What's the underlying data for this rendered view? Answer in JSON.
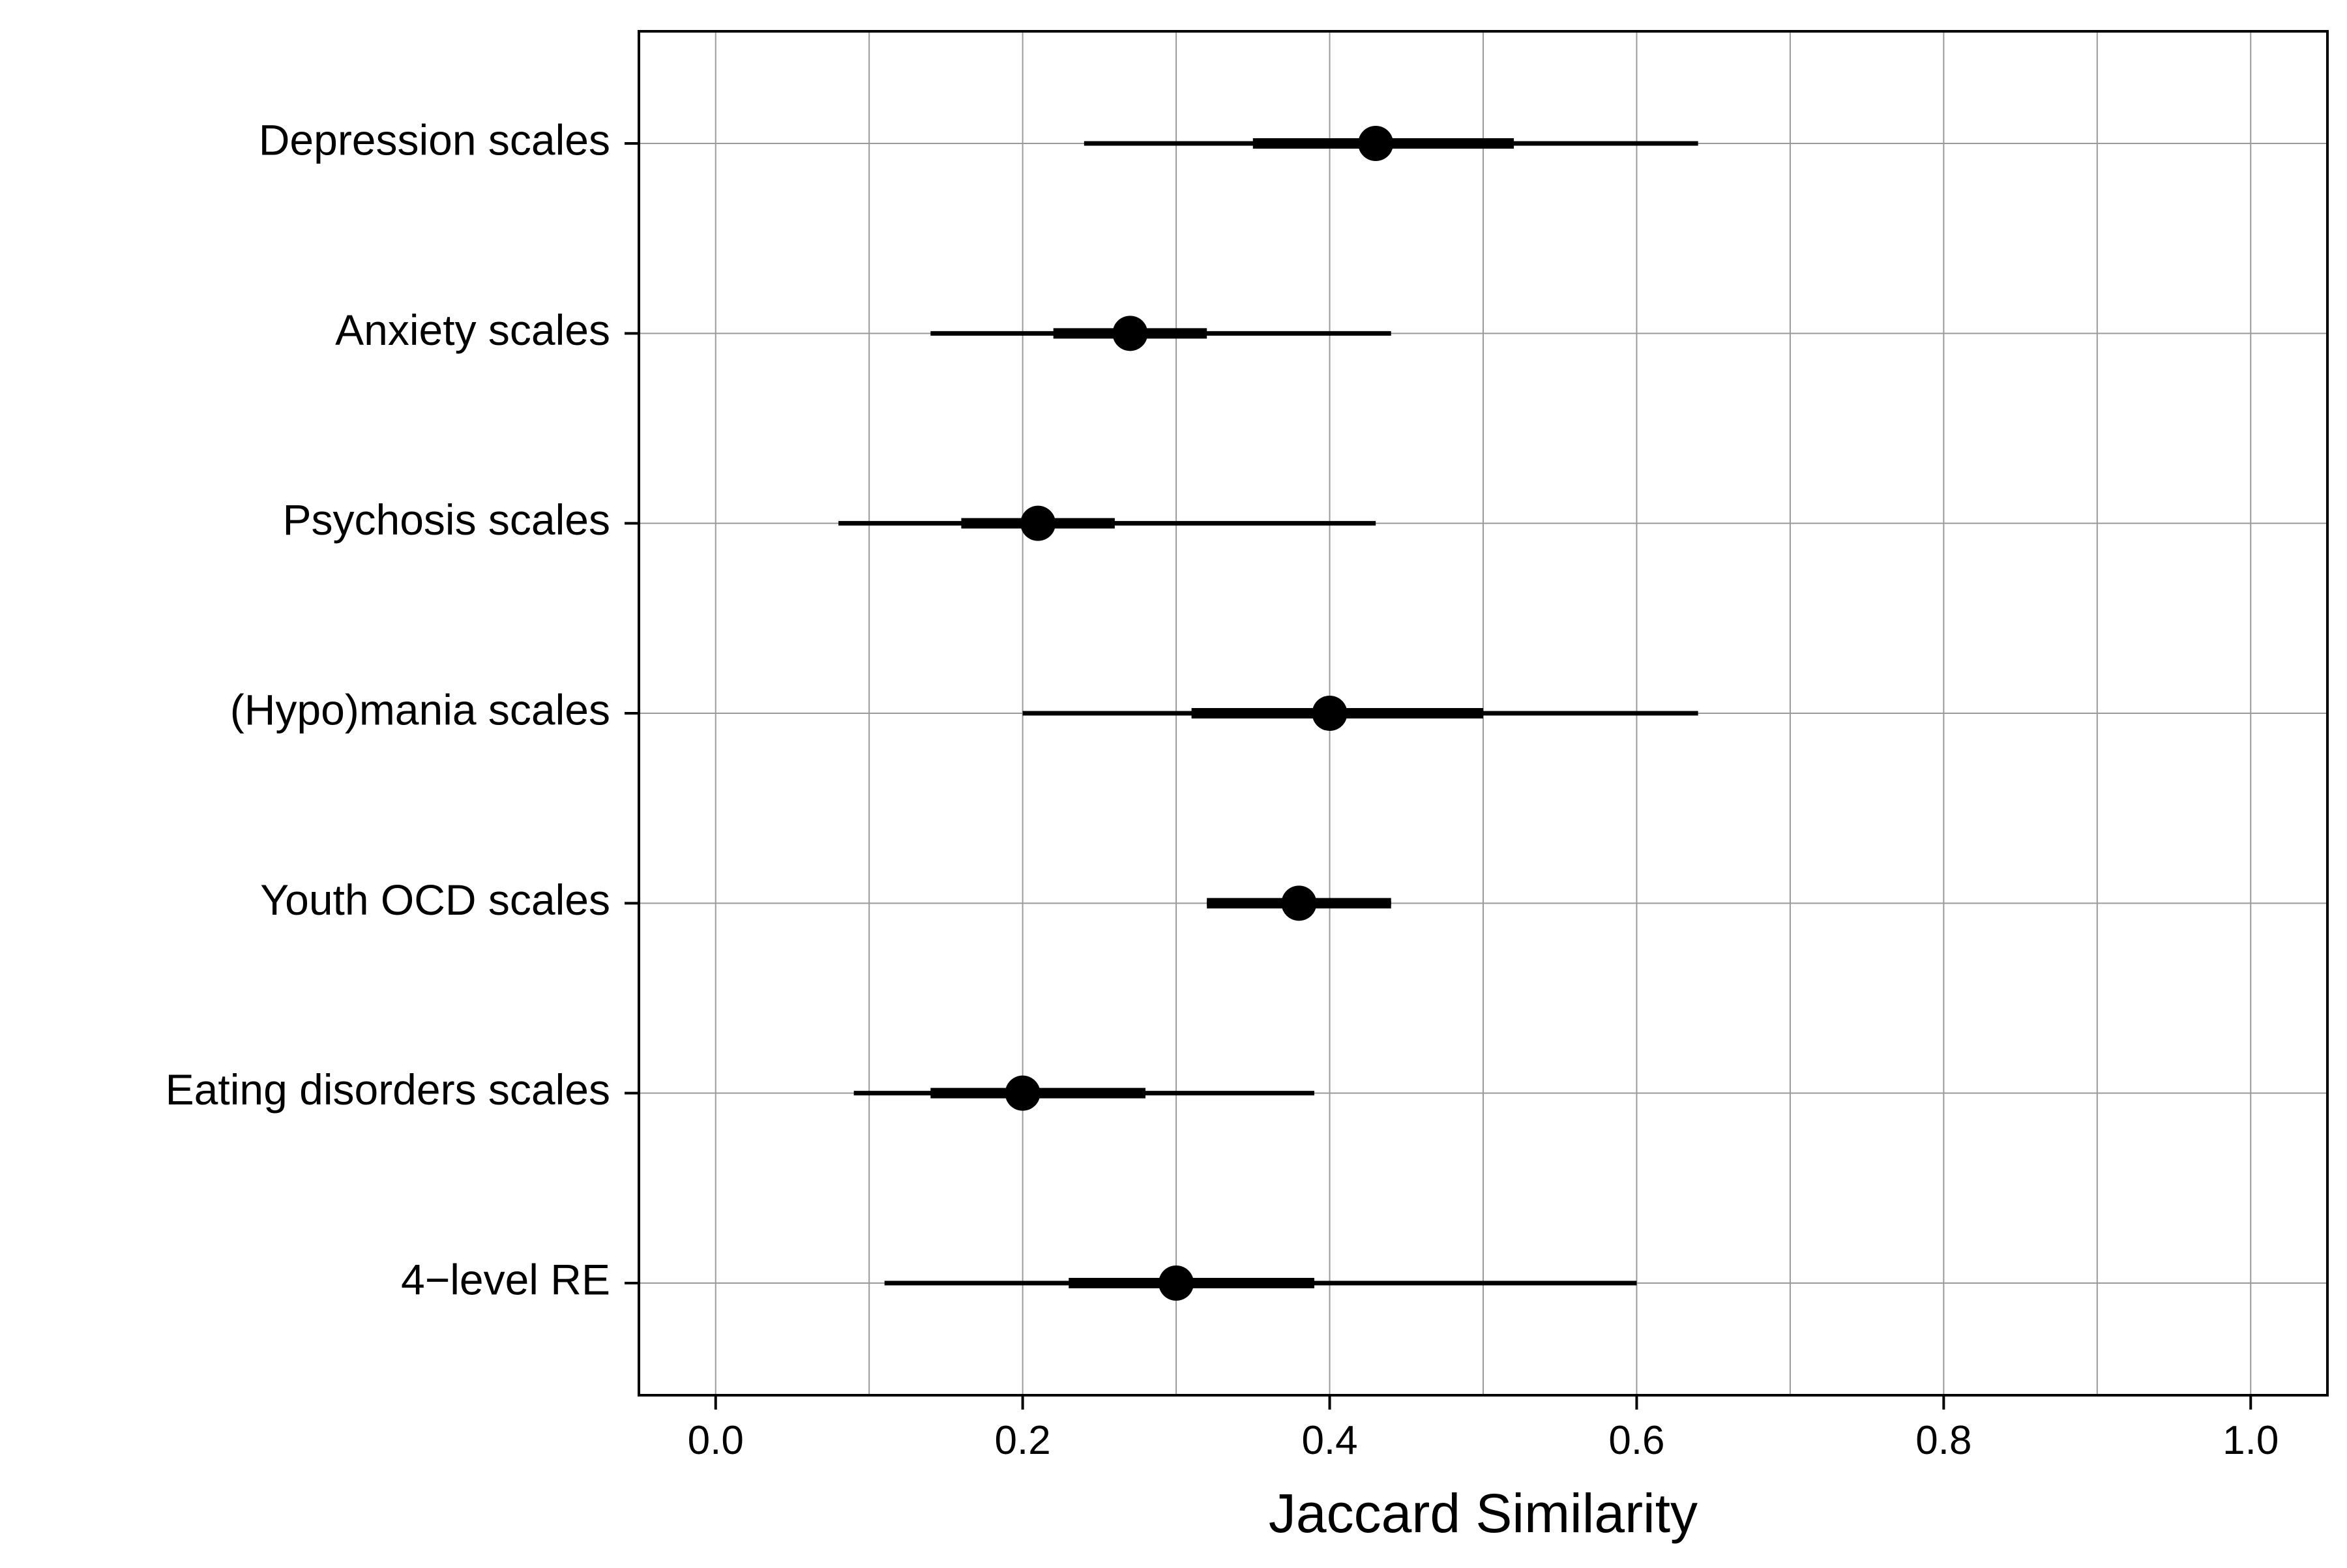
{
  "chart_data": {
    "type": "forest",
    "xlabel": "Jaccard Similarity",
    "xlim": [
      -0.05,
      1.05
    ],
    "x_ticks": [
      0.0,
      0.2,
      0.4,
      0.6,
      0.8,
      1.0
    ],
    "x_tick_labels": [
      "0.0",
      "0.2",
      "0.4",
      "0.6",
      "0.8",
      "1.0"
    ],
    "grid": true,
    "colors": {
      "marks": "#000000",
      "grid": "#9a9a9a",
      "background": "#ffffff"
    },
    "rows": [
      {
        "label": "Depression scales",
        "estimate": 0.43,
        "inner_interval": [
          0.35,
          0.52
        ],
        "outer_interval": [
          0.24,
          0.64
        ]
      },
      {
        "label": "Anxiety scales",
        "estimate": 0.27,
        "inner_interval": [
          0.22,
          0.32
        ],
        "outer_interval": [
          0.14,
          0.44
        ]
      },
      {
        "label": "Psychosis scales",
        "estimate": 0.21,
        "inner_interval": [
          0.16,
          0.26
        ],
        "outer_interval": [
          0.08,
          0.43
        ]
      },
      {
        "label": "(Hypo)mania scales",
        "estimate": 0.4,
        "inner_interval": [
          0.31,
          0.5
        ],
        "outer_interval": [
          0.2,
          0.64
        ]
      },
      {
        "label": "Youth OCD scales",
        "estimate": 0.38,
        "inner_interval": [
          0.32,
          0.44
        ],
        "outer_interval": [
          0.32,
          0.44
        ]
      },
      {
        "label": "Eating disorders scales",
        "estimate": 0.2,
        "inner_interval": [
          0.14,
          0.28
        ],
        "outer_interval": [
          0.09,
          0.39
        ]
      },
      {
        "label": "4−level RE",
        "estimate": 0.3,
        "inner_interval": [
          0.23,
          0.39
        ],
        "outer_interval": [
          0.11,
          0.6
        ]
      }
    ]
  }
}
